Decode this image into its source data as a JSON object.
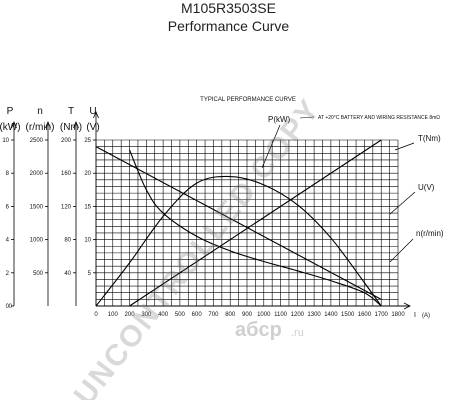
{
  "page": {
    "title": "M105R3503SE",
    "subtitle": "Performance Curve",
    "watermark": "UNCONTROLLED COPY",
    "logo_text": "aбcp",
    "logo_suffix": ".ru"
  },
  "chart_data": {
    "type": "line",
    "title": "TYPICAL PERFORMANCE CURVE",
    "annotation": "AT +20°C  BATTERY AND WIRING RESISTANCE 8mΩ",
    "xlabel": "I",
    "xunit": "(A)",
    "xlim": [
      0,
      1800
    ],
    "x_ticks": [
      0,
      100,
      200,
      300,
      400,
      500,
      600,
      700,
      800,
      900,
      1000,
      1100,
      1200,
      1300,
      1400,
      1500,
      1600,
      1700,
      1800
    ],
    "axes": [
      {
        "key": "P",
        "name": "P",
        "unit": "(kW)",
        "range": [
          0,
          10
        ],
        "ticks": [
          0,
          2,
          4,
          6,
          8,
          10
        ]
      },
      {
        "key": "n",
        "name": "n",
        "unit": "(r/min)",
        "range": [
          0,
          2500
        ],
        "ticks": [
          500,
          1000,
          1500,
          2000,
          2500
        ]
      },
      {
        "key": "T",
        "name": "T",
        "unit": "(Nm)",
        "range": [
          0,
          200
        ],
        "ticks": [
          40,
          80,
          120,
          160,
          200
        ]
      },
      {
        "key": "U",
        "name": "U",
        "unit": "(V)",
        "range": [
          0,
          25
        ],
        "ticks": [
          5,
          10,
          15,
          20,
          25
        ]
      }
    ],
    "series": [
      {
        "name": "P(kW)",
        "axis": "P",
        "x": [
          0,
          200,
          400,
          600,
          800,
          1000,
          1200,
          1400,
          1600,
          1700
        ],
        "y": [
          0,
          2.6,
          5.4,
          7.4,
          7.8,
          7.3,
          6.1,
          4.1,
          1.4,
          0
        ]
      },
      {
        "name": "T(Nm)",
        "axis": "T",
        "x": [
          200,
          1700
        ],
        "y": [
          0,
          200
        ]
      },
      {
        "name": "U(V)",
        "axis": "U",
        "x": [
          0,
          1700
        ],
        "y": [
          24,
          1
        ]
      },
      {
        "name": "n(r/min)",
        "axis": "n",
        "x": [
          200,
          300,
          400,
          600,
          800,
          1000,
          1200,
          1400,
          1600,
          1700
        ],
        "y": [
          2350,
          1750,
          1400,
          1050,
          830,
          670,
          530,
          380,
          200,
          0
        ]
      }
    ],
    "grid": true
  }
}
